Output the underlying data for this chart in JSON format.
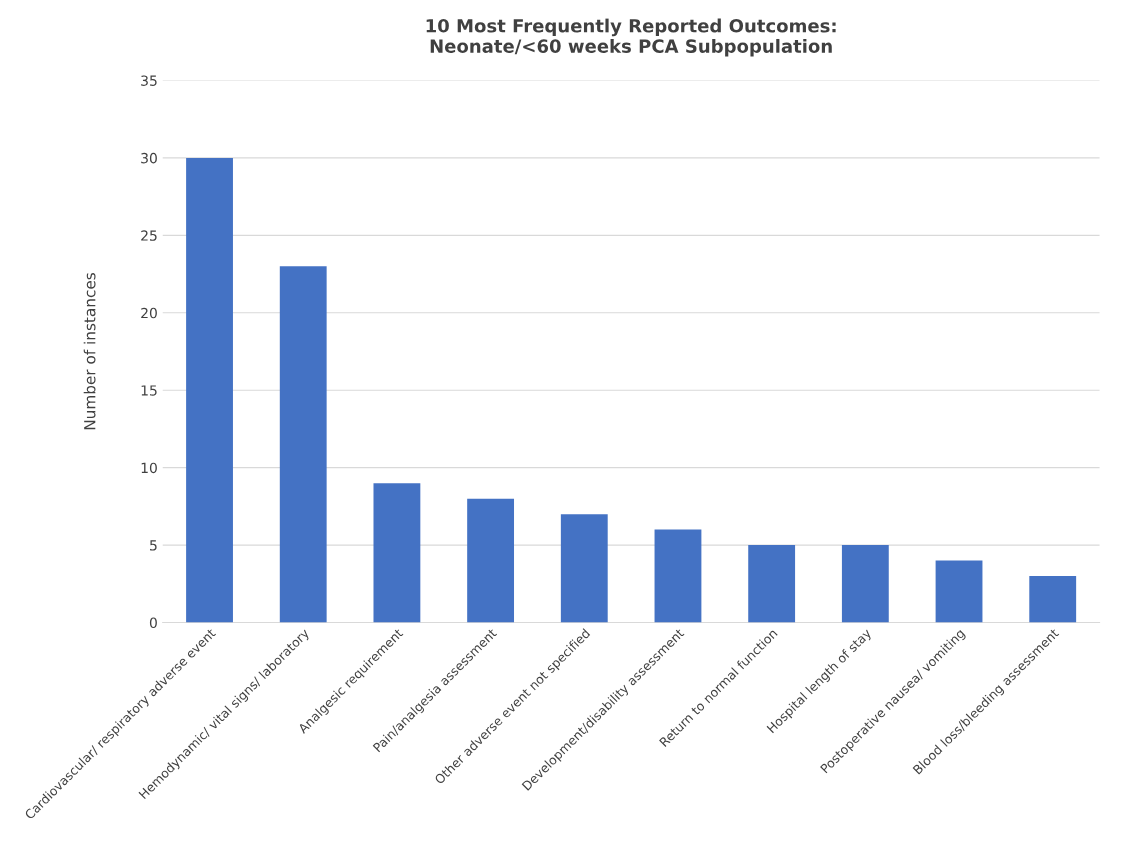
{
  "chart_data": {
    "type": "bar",
    "title": "10 Most Frequently Reported Outcomes:\nNeonate/<60 weeks PCA Subpopulation",
    "ylabel": "Number of instances",
    "categories": [
      "Cardiovascular/ respiratory adverse event",
      "Hemodynamic/ vital signs/ laboratory",
      "Analgesic requirement",
      "Pain/analgesia assessment",
      "Other adverse event not specified",
      "Development/disability assessment",
      "Return to normal function",
      "Hospital length of stay",
      "Postoperative nausea/ vomiting",
      "Blood loss/bleeding assessment"
    ],
    "values": [
      30,
      23,
      9,
      8,
      7,
      6,
      5,
      5,
      4,
      3
    ],
    "color": "#4472c4",
    "ylim": [
      0,
      35
    ],
    "yticks": [
      0,
      5,
      10,
      15,
      20,
      25,
      30,
      35
    ],
    "grid": "y"
  }
}
